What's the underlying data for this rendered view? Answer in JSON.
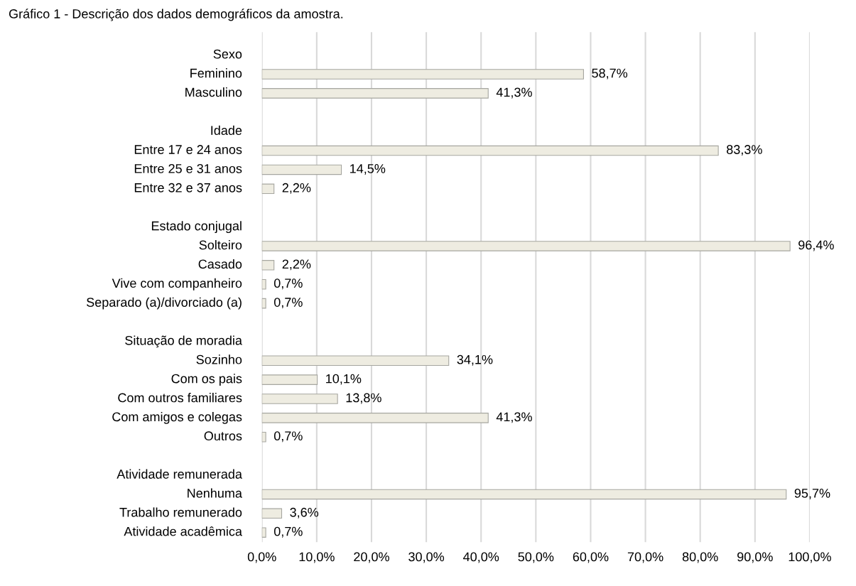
{
  "chart_data": {
    "type": "bar",
    "orientation": "horizontal",
    "title": "Gráfico 1 - Descrição dos dados demográficos da amostra.",
    "categories": [
      "Sexo",
      "Feminino",
      "Masculino",
      null,
      "Idade",
      "Entre 17 e 24 anos",
      "Entre 25 e 31 anos",
      "Entre 32 e 37 anos",
      null,
      "Estado conjugal",
      "Solteiro",
      "Casado",
      "Vive com companheiro",
      "Separado (a)/divorciado (a)",
      null,
      "Situação de moradia",
      "Sozinho",
      "Com os pais",
      "Com outros familiares",
      "Com amigos e colegas",
      "Outros",
      null,
      "Atividade remunerada",
      "Nenhuma",
      "Trabalho remunerado",
      "Atividade acadêmica"
    ],
    "values": [
      null,
      58.7,
      41.3,
      null,
      null,
      83.3,
      14.5,
      2.2,
      null,
      null,
      96.4,
      2.2,
      0.7,
      0.7,
      null,
      null,
      34.1,
      10.1,
      13.8,
      41.3,
      0.7,
      null,
      null,
      95.7,
      3.6,
      0.7
    ],
    "value_labels": [
      null,
      "58,7%",
      "41,3%",
      null,
      null,
      "83,3%",
      "14,5%",
      "2,2%",
      null,
      null,
      "96,4%",
      "2,2%",
      "0,7%",
      "0,7%",
      null,
      null,
      "34,1%",
      "10,1%",
      "13,8%",
      "41,3%",
      "0,7%",
      null,
      null,
      "95,7%",
      "3,6%",
      "0,7%"
    ],
    "color": "#eeece1",
    "xlim": [
      0,
      100
    ],
    "xticks": [
      {
        "value": 0,
        "label": "0,0%"
      },
      {
        "value": 10,
        "label": "10,0%"
      },
      {
        "value": 20,
        "label": "20,0%"
      },
      {
        "value": 30,
        "label": "30,0%"
      },
      {
        "value": 40,
        "label": "40,0%"
      },
      {
        "value": 50,
        "label": "50,0%"
      },
      {
        "value": 60,
        "label": "60,0%"
      },
      {
        "value": 70,
        "label": "70,0%"
      },
      {
        "value": 80,
        "label": "80,0%"
      },
      {
        "value": 90,
        "label": "90,0%"
      },
      {
        "value": 100,
        "label": "100,0%"
      }
    ],
    "grid": "x"
  }
}
